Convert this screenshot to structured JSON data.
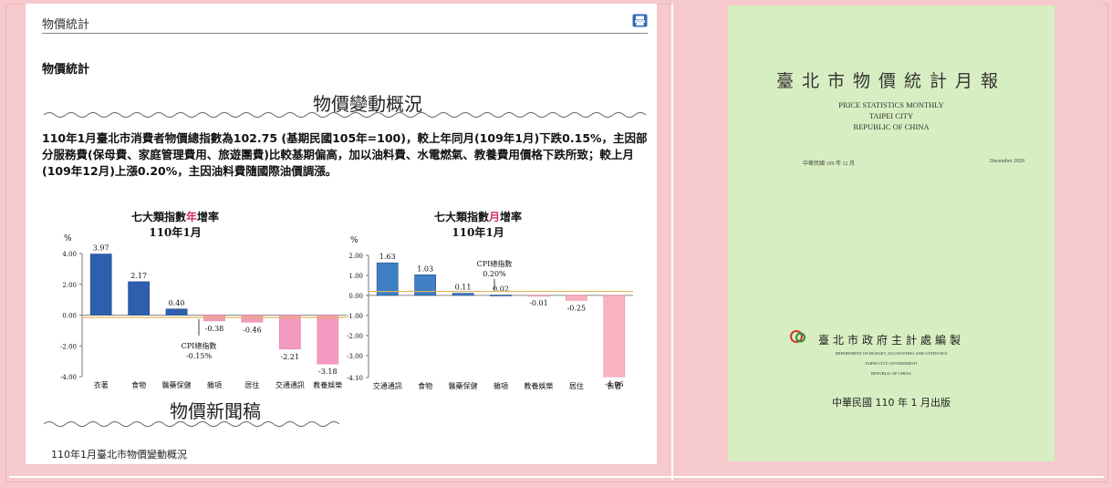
{
  "page": {
    "header_title": "物價統計",
    "section_title": "物價統計",
    "heading_changes": "物價變動概況",
    "paragraph": "110年1月臺北市消費者物價總指數為102.75 (基期民國105年=100)，較上年同月(109年1月)下跌0.15%，主因部分服務費(保母費、家庭管理費用、旅遊團費)比較基期偏高，加以油料費、水電燃氣、教養費用價格下跌所致；較上月(109年12月)上漲0.20%，主因油料費隨國際油價調漲。",
    "heading_news": "物價新聞稿",
    "news_link": "110年1月臺北市物價變動概況"
  },
  "icons": {
    "print": "printer-icon"
  },
  "chart_data": [
    {
      "type": "bar",
      "title": "七大類指數年增率",
      "title_parts": [
        "七大類指數",
        "年",
        "增率"
      ],
      "subtitle": "110年1月",
      "unit": "%",
      "categories": [
        "衣著",
        "食物",
        "醫藥保健",
        "雜項",
        "居住",
        "交通通訊",
        "教養娛樂"
      ],
      "values": [
        3.97,
        2.17,
        0.4,
        -0.38,
        -0.46,
        -2.21,
        -3.18
      ],
      "ylim": [
        -4.0,
        4.0
      ],
      "yticks": [
        "4.00",
        "2.00",
        "0.00",
        "-2.00",
        "-4.00"
      ],
      "reference_line": {
        "value": -0.15,
        "label": "CPI總指數",
        "value_label": "-0.15%"
      },
      "colors": {
        "positive": "#2e5fae",
        "negative": "#f39ac0",
        "reference": "#e2b55a"
      }
    },
    {
      "type": "bar",
      "title": "七大類指數月增率",
      "title_parts": [
        "七大類指數",
        "月",
        "增率"
      ],
      "subtitle": "110年1月",
      "unit": "%",
      "categories": [
        "交通通訊",
        "食物",
        "醫藥保健",
        "雜項",
        "教養娛樂",
        "居住",
        "衣著"
      ],
      "values": [
        1.63,
        1.03,
        0.11,
        0.02,
        -0.01,
        -0.25,
        -4.06
      ],
      "ylim": [
        -4.1,
        2.0
      ],
      "yticks": [
        "2.00",
        "1.00",
        "0.00",
        "-1.00",
        "-2.00",
        "-3.00",
        "-4.10"
      ],
      "reference_line": {
        "value": 0.2,
        "label": "CPI總指數",
        "value_label": "0.20%"
      },
      "colors": {
        "positive": "#3f7fc4",
        "negative": "#f7b3c0",
        "reference": "#e2b55a"
      }
    }
  ],
  "cover": {
    "title": "臺北市物價統計月報",
    "en_line1": "PRICE  STATISTICS  MONTHLY",
    "en_line2": "TAIPEI  CITY",
    "en_line3": "REPUBLIC  OF  CHINA",
    "date_zh": "中華民國 109 年 12 月",
    "date_en": "December 2020",
    "dept": "臺北市政府主計處編製",
    "dept_en1": "DEPARTMENT OF BUDGET, ACCOUNTING AND STATISTICS",
    "dept_en2": "TAIPEI CITY GOVERNMENT",
    "dept_en3": "REPUBLIC OF CHINA",
    "publish": "中華民國 110 年 1 月出版",
    "bg": "#d7eec2"
  }
}
